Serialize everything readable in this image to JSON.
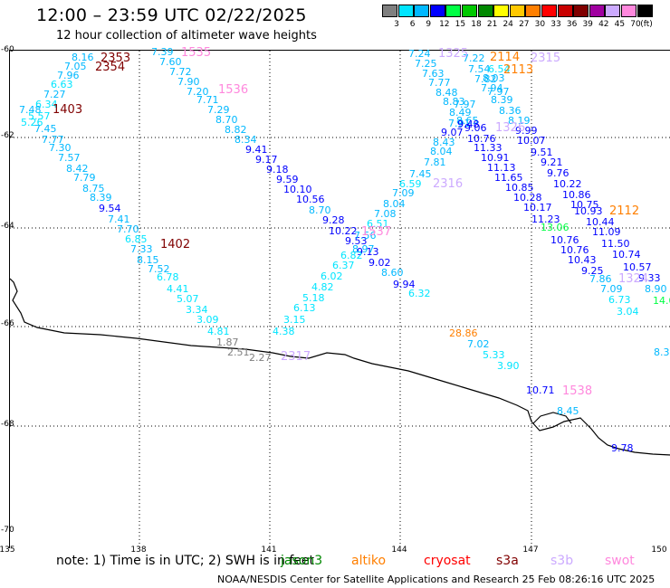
{
  "header": {
    "title": "12:00  –  23:59 UTC 02/22/2025",
    "subtitle": "12 hour collection of altimeter wave heights"
  },
  "legend": {
    "unit": "(ft)",
    "items": [
      {
        "label": "3",
        "color": "#7f7f7f"
      },
      {
        "label": "6",
        "color": "#00e5ff"
      },
      {
        "label": "9",
        "color": "#00b8ff"
      },
      {
        "label": "12",
        "color": "#0000ff"
      },
      {
        "label": "15",
        "color": "#00ff44"
      },
      {
        "label": "18",
        "color": "#00c800"
      },
      {
        "label": "21",
        "color": "#008800"
      },
      {
        "label": "24",
        "color": "#ffff00"
      },
      {
        "label": "27",
        "color": "#ffc800"
      },
      {
        "label": "30",
        "color": "#ff7f00"
      },
      {
        "label": "33",
        "color": "#ff0000"
      },
      {
        "label": "36",
        "color": "#c80000"
      },
      {
        "label": "39",
        "color": "#800000"
      },
      {
        "label": "42",
        "color": "#a000a0"
      },
      {
        "label": "45",
        "color": "#ccaaff"
      },
      {
        "label": "70",
        "color": "#ff88dd"
      },
      {
        "label": "",
        "color": "#000000"
      }
    ]
  },
  "map": {
    "lat_labels": [
      "-60",
      "-62",
      "-64",
      "-66",
      "-68",
      "-70"
    ],
    "lon_labels": [
      "135",
      "138",
      "141",
      "144",
      "147",
      "150"
    ],
    "coast_color": "#000000",
    "grid_color": "#000000"
  },
  "passes": [
    {
      "label": "2353",
      "color": "#800000"
    },
    {
      "label": "2354",
      "color": "#800000"
    },
    {
      "label": "1403",
      "color": "#800000"
    },
    {
      "label": "1535",
      "color": "#ff88dd"
    },
    {
      "label": "1536",
      "color": "#ff88dd"
    },
    {
      "label": "1402",
      "color": "#800000"
    },
    {
      "label": "2317",
      "color": "#ccaaff"
    },
    {
      "label": "1325",
      "color": "#ccaaff"
    },
    {
      "label": "2114",
      "color": "#ff7f00"
    },
    {
      "label": "2113",
      "color": "#ff7f00"
    },
    {
      "label": "2315",
      "color": "#ccaaff"
    },
    {
      "label": "2316",
      "color": "#ccaaff"
    },
    {
      "label": "1326",
      "color": "#ccaaff"
    },
    {
      "label": "1537",
      "color": "#ff88dd"
    },
    {
      "label": "2112",
      "color": "#ff7f00"
    },
    {
      "label": "1538",
      "color": "#ff88dd"
    },
    {
      "label": "1324",
      "color": "#ccaaff"
    }
  ],
  "observations": [
    {
      "v": "8.16",
      "c": "#00b8ff"
    },
    {
      "v": "7.05",
      "c": "#00b8ff"
    },
    {
      "v": "7.96",
      "c": "#00b8ff"
    },
    {
      "v": "6.63",
      "c": "#00e5ff"
    },
    {
      "v": "7.27",
      "c": "#00b8ff"
    },
    {
      "v": "6.34",
      "c": "#00e5ff"
    },
    {
      "v": "7.48",
      "c": "#00b8ff"
    },
    {
      "v": "5.26",
      "c": "#00e5ff"
    },
    {
      "v": "5.57",
      "c": "#00e5ff"
    },
    {
      "v": "7.45",
      "c": "#00b8ff"
    },
    {
      "v": "7.77",
      "c": "#00b8ff"
    },
    {
      "v": "7.30",
      "c": "#00b8ff"
    },
    {
      "v": "7.57",
      "c": "#00b8ff"
    },
    {
      "v": "8.42",
      "c": "#00b8ff"
    },
    {
      "v": "7.79",
      "c": "#00b8ff"
    },
    {
      "v": "8.75",
      "c": "#00b8ff"
    },
    {
      "v": "8.39",
      "c": "#00b8ff"
    },
    {
      "v": "9.54",
      "c": "#0000ff"
    },
    {
      "v": "7.41",
      "c": "#00b8ff"
    },
    {
      "v": "7.70",
      "c": "#00b8ff"
    },
    {
      "v": "6.85",
      "c": "#00e5ff"
    },
    {
      "v": "7.33",
      "c": "#00b8ff"
    },
    {
      "v": "8.15",
      "c": "#00b8ff"
    },
    {
      "v": "7.52",
      "c": "#00b8ff"
    },
    {
      "v": "6.78",
      "c": "#00e5ff"
    },
    {
      "v": "4.41",
      "c": "#00e5ff"
    },
    {
      "v": "5.07",
      "c": "#00e5ff"
    },
    {
      "v": "3.34",
      "c": "#00e5ff"
    },
    {
      "v": "3.09",
      "c": "#00e5ff"
    },
    {
      "v": "4.81",
      "c": "#00e5ff"
    },
    {
      "v": "1.87",
      "c": "#7f7f7f"
    },
    {
      "v": "2.51",
      "c": "#7f7f7f"
    },
    {
      "v": "2.27",
      "c": "#7f7f7f"
    },
    {
      "v": "7.39",
      "c": "#00b8ff"
    },
    {
      "v": "7.60",
      "c": "#00b8ff"
    },
    {
      "v": "7.72",
      "c": "#00b8ff"
    },
    {
      "v": "7.90",
      "c": "#00b8ff"
    },
    {
      "v": "7.20",
      "c": "#00b8ff"
    },
    {
      "v": "7.71",
      "c": "#00b8ff"
    },
    {
      "v": "7.29",
      "c": "#00b8ff"
    },
    {
      "v": "8.70",
      "c": "#00b8ff"
    },
    {
      "v": "8.82",
      "c": "#00b8ff"
    },
    {
      "v": "8.34",
      "c": "#00b8ff"
    },
    {
      "v": "9.41",
      "c": "#0000ff"
    },
    {
      "v": "9.17",
      "c": "#0000ff"
    },
    {
      "v": "9.18",
      "c": "#0000ff"
    },
    {
      "v": "9.59",
      "c": "#0000ff"
    },
    {
      "v": "10.10",
      "c": "#0000ff"
    },
    {
      "v": "10.56",
      "c": "#0000ff"
    },
    {
      "v": "8.70",
      "c": "#00b8ff"
    },
    {
      "v": "9.28",
      "c": "#0000ff"
    },
    {
      "v": "10.22",
      "c": "#0000ff"
    },
    {
      "v": "9.53",
      "c": "#0000ff"
    },
    {
      "v": "8.97",
      "c": "#00b8ff"
    },
    {
      "v": "9.13",
      "c": "#0000ff"
    },
    {
      "v": "9.02",
      "c": "#0000ff"
    },
    {
      "v": "8.60",
      "c": "#00b8ff"
    },
    {
      "v": "9.94",
      "c": "#0000ff"
    },
    {
      "v": "6.32",
      "c": "#00e5ff"
    },
    {
      "v": "3.15",
      "c": "#00e5ff"
    },
    {
      "v": "4.38",
      "c": "#00e5ff"
    },
    {
      "v": "6.13",
      "c": "#00e5ff"
    },
    {
      "v": "5.18",
      "c": "#00e5ff"
    },
    {
      "v": "4.82",
      "c": "#00e5ff"
    },
    {
      "v": "6.02",
      "c": "#00e5ff"
    },
    {
      "v": "6.37",
      "c": "#00e5ff"
    },
    {
      "v": "6.82",
      "c": "#00e5ff"
    },
    {
      "v": "7.56",
      "c": "#00b8ff"
    },
    {
      "v": "6.51",
      "c": "#00e5ff"
    },
    {
      "v": "7.08",
      "c": "#00b8ff"
    },
    {
      "v": "8.04",
      "c": "#00b8ff"
    },
    {
      "v": "7.09",
      "c": "#00b8ff"
    },
    {
      "v": "6.59",
      "c": "#00e5ff"
    },
    {
      "v": "7.45",
      "c": "#00b8ff"
    },
    {
      "v": "7.81",
      "c": "#00b8ff"
    },
    {
      "v": "8.04",
      "c": "#00b8ff"
    },
    {
      "v": "8.43",
      "c": "#00b8ff"
    },
    {
      "v": "9.07",
      "c": "#0000ff"
    },
    {
      "v": "7.91",
      "c": "#00b8ff"
    },
    {
      "v": "7.97",
      "c": "#00b8ff"
    },
    {
      "v": "7.24",
      "c": "#00b8ff"
    },
    {
      "v": "7.25",
      "c": "#00b8ff"
    },
    {
      "v": "7.63",
      "c": "#00b8ff"
    },
    {
      "v": "7.77",
      "c": "#00b8ff"
    },
    {
      "v": "8.48",
      "c": "#00b8ff"
    },
    {
      "v": "8.83",
      "c": "#00b8ff"
    },
    {
      "v": "8.49",
      "c": "#00b8ff"
    },
    {
      "v": "8.65",
      "c": "#00b8ff"
    },
    {
      "v": "9.48",
      "c": "#0000ff"
    },
    {
      "v": "9.06",
      "c": "#0000ff"
    },
    {
      "v": "10.76",
      "c": "#0000ff"
    },
    {
      "v": "11.33",
      "c": "#0000ff"
    },
    {
      "v": "10.91",
      "c": "#0000ff"
    },
    {
      "v": "11.13",
      "c": "#0000ff"
    },
    {
      "v": "11.65",
      "c": "#0000ff"
    },
    {
      "v": "10.85",
      "c": "#0000ff"
    },
    {
      "v": "10.28",
      "c": "#0000ff"
    },
    {
      "v": "10.17",
      "c": "#0000ff"
    },
    {
      "v": "11.23",
      "c": "#0000ff"
    },
    {
      "v": "13.06",
      "c": "#00ff44"
    },
    {
      "v": "10.76",
      "c": "#0000ff"
    },
    {
      "v": "10.76",
      "c": "#0000ff"
    },
    {
      "v": "10.43",
      "c": "#0000ff"
    },
    {
      "v": "9.25",
      "c": "#0000ff"
    },
    {
      "v": "7.86",
      "c": "#00b8ff"
    },
    {
      "v": "7.09",
      "c": "#00b8ff"
    },
    {
      "v": "6.73",
      "c": "#00e5ff"
    },
    {
      "v": "3.04",
      "c": "#00e5ff"
    },
    {
      "v": "7.22",
      "c": "#00b8ff"
    },
    {
      "v": "7.54",
      "c": "#00b8ff"
    },
    {
      "v": "6.54",
      "c": "#00e5ff"
    },
    {
      "v": "7.82",
      "c": "#00b8ff"
    },
    {
      "v": "8.03",
      "c": "#00b8ff"
    },
    {
      "v": "7.94",
      "c": "#00b8ff"
    },
    {
      "v": "7.97",
      "c": "#00b8ff"
    },
    {
      "v": "8.39",
      "c": "#00b8ff"
    },
    {
      "v": "8.36",
      "c": "#00b8ff"
    },
    {
      "v": "8.19",
      "c": "#00b8ff"
    },
    {
      "v": "9.99",
      "c": "#0000ff"
    },
    {
      "v": "10.07",
      "c": "#0000ff"
    },
    {
      "v": "9.51",
      "c": "#0000ff"
    },
    {
      "v": "9.21",
      "c": "#0000ff"
    },
    {
      "v": "9.76",
      "c": "#0000ff"
    },
    {
      "v": "10.22",
      "c": "#0000ff"
    },
    {
      "v": "10.86",
      "c": "#0000ff"
    },
    {
      "v": "10.75",
      "c": "#0000ff"
    },
    {
      "v": "10.93",
      "c": "#0000ff"
    },
    {
      "v": "10.44",
      "c": "#0000ff"
    },
    {
      "v": "11.09",
      "c": "#0000ff"
    },
    {
      "v": "11.50",
      "c": "#0000ff"
    },
    {
      "v": "10.74",
      "c": "#0000ff"
    },
    {
      "v": "10.57",
      "c": "#0000ff"
    },
    {
      "v": "9.33",
      "c": "#0000ff"
    },
    {
      "v": "8.90",
      "c": "#00b8ff"
    },
    {
      "v": "14.0",
      "c": "#00ff44"
    },
    {
      "v": "8.3",
      "c": "#00b8ff"
    },
    {
      "v": "28.86",
      "c": "#ff7f00"
    },
    {
      "v": "7.02",
      "c": "#00b8ff"
    },
    {
      "v": "5.33",
      "c": "#00e5ff"
    },
    {
      "v": "3.90",
      "c": "#00e5ff"
    },
    {
      "v": "10.71",
      "c": "#0000ff"
    },
    {
      "v": "8.45",
      "c": "#00b8ff"
    },
    {
      "v": "9.78",
      "c": "#0000ff"
    }
  ],
  "footer": {
    "note": "note:  1) Time is in UTC;  2) SWH is in feet",
    "satellites": [
      {
        "label": "jason3",
        "color": "#008800"
      },
      {
        "label": "altiko",
        "color": "#ff7f00"
      },
      {
        "label": "cryosat",
        "color": "#ff0000"
      },
      {
        "label": "s3a",
        "color": "#800000"
      },
      {
        "label": "s3b",
        "color": "#ccaaff"
      },
      {
        "label": "swot",
        "color": "#ff88dd"
      }
    ],
    "credit": "NOAA/NESDIS Center for Satellite Applications and Research     25 Feb 08:26:16 UTC 2025"
  }
}
